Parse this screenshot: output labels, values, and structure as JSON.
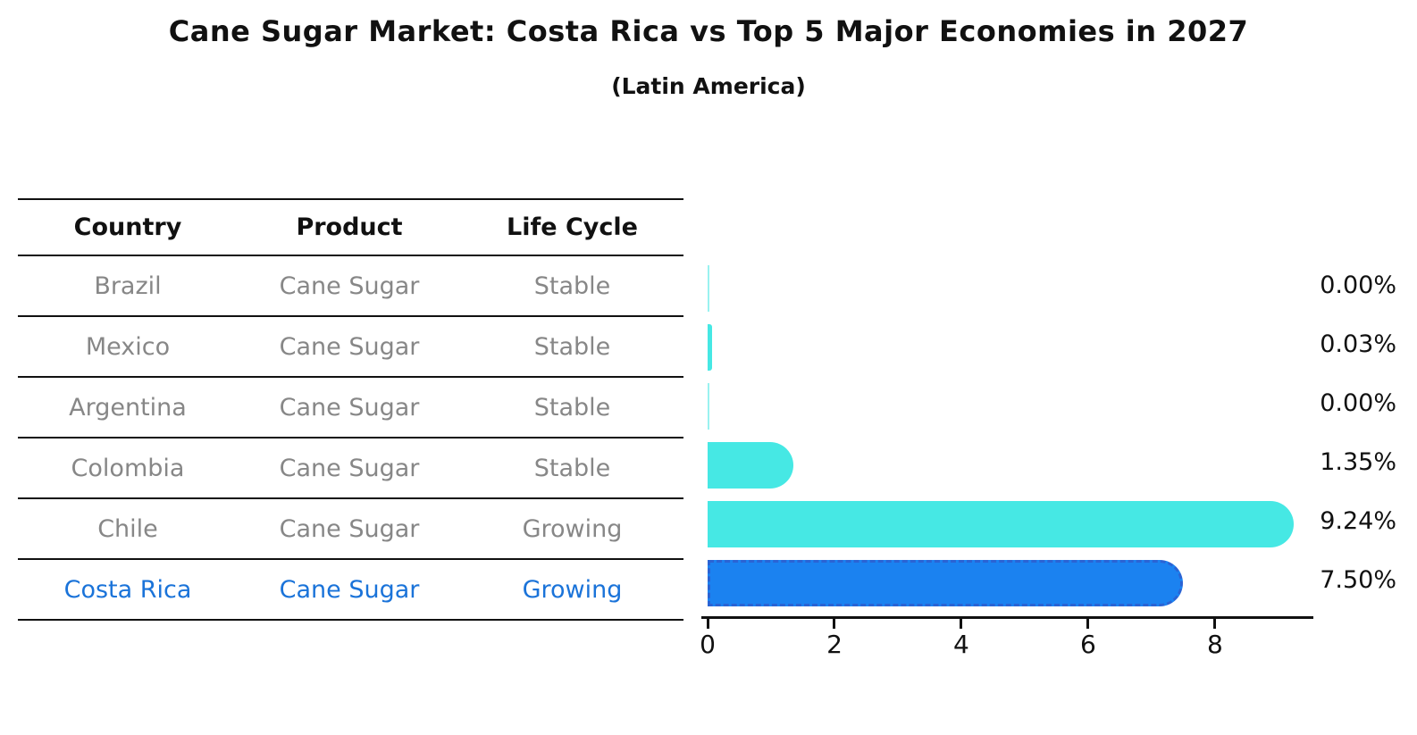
{
  "title": "Cane Sugar Market: Costa Rica vs Top 5 Major Economies in 2027",
  "subtitle": "(Latin America)",
  "table": {
    "headers": [
      "Country",
      "Product",
      "Life Cycle"
    ],
    "rows": [
      {
        "country": "Brazil",
        "product": "Cane Sugar",
        "life_cycle": "Stable",
        "highlight": false
      },
      {
        "country": "Mexico",
        "product": "Cane Sugar",
        "life_cycle": "Stable",
        "highlight": false
      },
      {
        "country": "Argentina",
        "product": "Cane Sugar",
        "life_cycle": "Stable",
        "highlight": false
      },
      {
        "country": "Colombia",
        "product": "Cane Sugar",
        "life_cycle": "Stable",
        "highlight": false
      },
      {
        "country": "Chile",
        "product": "Cane Sugar",
        "life_cycle": "Growing",
        "highlight": false
      },
      {
        "country": "Costa Rica",
        "product": "Cane Sugar",
        "life_cycle": "Growing",
        "highlight": true
      }
    ]
  },
  "chart_data": {
    "type": "bar",
    "orientation": "horizontal",
    "title": "Cane Sugar Market: Costa Rica vs Top 5 Major Economies in 2027",
    "subtitle": "(Latin America)",
    "categories": [
      "Brazil",
      "Mexico",
      "Argentina",
      "Colombia",
      "Chile",
      "Costa Rica"
    ],
    "values": [
      0.0,
      0.03,
      0.0,
      1.35,
      9.24,
      7.5
    ],
    "value_labels": [
      "0.00%",
      "0.03%",
      "0.00%",
      "1.35%",
      "9.24%",
      "7.50%"
    ],
    "highlight_index": 5,
    "x_ticks": [
      0,
      2,
      4,
      6,
      8
    ],
    "xlim": [
      0,
      9.55
    ],
    "xlabel": "",
    "ylabel": "",
    "grid": false,
    "legend": false,
    "bar_color": "#46e8e4",
    "highlight_bar_color": "#1b82f0",
    "highlight_bar_border_color": "#2a63d4"
  },
  "colors": {
    "title_text": "#111111",
    "table_text": "#878787",
    "highlight_text": "#1a73d9",
    "line": "#111111"
  }
}
